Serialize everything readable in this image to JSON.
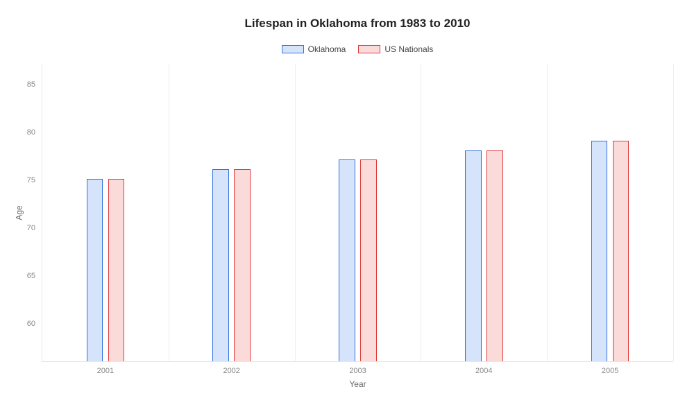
{
  "chart": {
    "type": "bar",
    "title": "Lifespan in Oklahoma from 1983 to 2010",
    "title_fontsize": 17,
    "title_color": "#222222",
    "background_color": "#ffffff",
    "xlabel": "Year",
    "ylabel": "Age",
    "axis_label_fontsize": 12,
    "axis_label_color": "#666666",
    "tick_fontsize": 11,
    "tick_color": "#888888",
    "grid_color": "#eeeeee",
    "border_color": "#e6e6e6",
    "categories": [
      "2001",
      "2002",
      "2003",
      "2004",
      "2005"
    ],
    "ylim": [
      57,
      88
    ],
    "yticks": [
      60,
      65,
      70,
      75,
      80,
      85
    ],
    "bar_width_pct": 2.6,
    "bar_gap_pct": 0.8,
    "series": [
      {
        "name": "Oklahoma",
        "fill": "#d6e4fb",
        "stroke": "#2f6fe0",
        "values": [
          76,
          77,
          78,
          79,
          80
        ]
      },
      {
        "name": "US Nationals",
        "fill": "#fbdada",
        "stroke": "#e03a3a",
        "values": [
          76,
          77,
          78,
          79,
          80
        ]
      }
    ],
    "legend": {
      "items": [
        {
          "label": "Oklahoma",
          "fill": "#d6e4fb",
          "stroke": "#2f6fe0"
        },
        {
          "label": "US Nationals",
          "fill": "#fbdada",
          "stroke": "#e03a3a"
        }
      ],
      "swatch_width": 32,
      "swatch_height": 12,
      "fontsize": 12
    }
  }
}
